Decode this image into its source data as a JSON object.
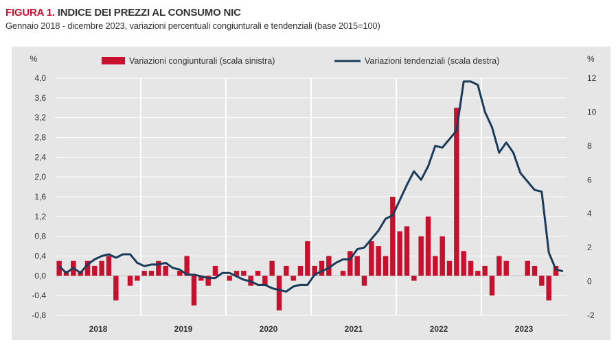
{
  "figure": {
    "label": "FIGURA 1.",
    "title": "INDICE DEI PREZZI AL CONSUMO NIC",
    "subtitle": "Gennaio 2018 - dicembre 2023, variazioni percentuali congiunturali e tendenziali (base 2015=100)"
  },
  "colors": {
    "background": "#e6e6e6",
    "bars": "#c8102e",
    "line": "#1a3c5a",
    "grid": "#ffffff"
  },
  "chart_data": {
    "type": "bar",
    "left_unit": "%",
    "right_unit": "%",
    "ylim_left": [
      -0.8,
      4.0
    ],
    "ylim_right": [
      -2,
      12
    ],
    "yticks_left": [
      "4,0",
      "3,6",
      "3,2",
      "2,8",
      "2,4",
      "2,0",
      "1,6",
      "1,2",
      "0,8",
      "0,4",
      "0,0",
      "-0,4",
      "-0,8"
    ],
    "yticks_right": [
      "12",
      "10",
      "8",
      "6",
      "4",
      "2",
      "0",
      "-2"
    ],
    "years": [
      "2018",
      "2019",
      "2020",
      "2021",
      "2022",
      "2023"
    ],
    "legend": {
      "position": "top",
      "bars_label": "Variazioni congiunturali (scala sinistra)",
      "line_label": "Variazioni tendenziali (scala destra)"
    },
    "grid": true,
    "series": [
      {
        "name": "Variazioni congiunturali (scala sinistra)",
        "type": "bar",
        "values": [
          0.3,
          0.1,
          0.3,
          0.1,
          0.3,
          0.2,
          0.3,
          0.4,
          -0.5,
          0.0,
          -0.2,
          -0.1,
          0.1,
          0.1,
          0.3,
          0.2,
          0.0,
          0.1,
          0.4,
          -0.6,
          -0.1,
          -0.2,
          0.2,
          0.0,
          -0.1,
          0.1,
          0.1,
          -0.2,
          0.1,
          -0.2,
          0.3,
          -0.7,
          0.2,
          -0.1,
          0.2,
          0.7,
          0.2,
          0.3,
          0.4,
          0.0,
          0.1,
          0.5,
          0.4,
          -0.2,
          0.7,
          0.6,
          0.4,
          1.6,
          0.9,
          1.0,
          -0.1,
          0.8,
          1.2,
          0.4,
          0.8,
          0.3,
          3.4,
          0.5,
          0.3,
          0.1,
          0.2,
          -0.4,
          0.4,
          0.3,
          0.0,
          0.0,
          0.3,
          0.2,
          -0.2,
          -0.5,
          0.2,
          0.0
        ]
      },
      {
        "name": "Variazioni tendenziali (scala destra)",
        "type": "line",
        "values": [
          0.9,
          0.5,
          0.8,
          0.5,
          1.0,
          1.3,
          1.5,
          1.6,
          1.4,
          1.6,
          1.6,
          1.1,
          0.9,
          1.0,
          1.0,
          1.1,
          0.8,
          0.7,
          0.4,
          0.4,
          0.3,
          0.2,
          0.2,
          0.5,
          0.5,
          0.3,
          0.1,
          0.0,
          -0.2,
          -0.2,
          -0.4,
          -0.5,
          -0.6,
          -0.3,
          -0.2,
          -0.2,
          0.4,
          0.6,
          0.8,
          1.1,
          1.3,
          1.3,
          1.9,
          2.0,
          2.5,
          3.0,
          3.7,
          3.9,
          4.8,
          5.7,
          6.5,
          6.0,
          6.8,
          8.0,
          7.9,
          8.4,
          8.9,
          11.8,
          11.8,
          11.6,
          10.0,
          9.1,
          7.6,
          8.2,
          7.6,
          6.4,
          5.9,
          5.4,
          5.3,
          1.7,
          0.7,
          0.6
        ]
      }
    ]
  }
}
